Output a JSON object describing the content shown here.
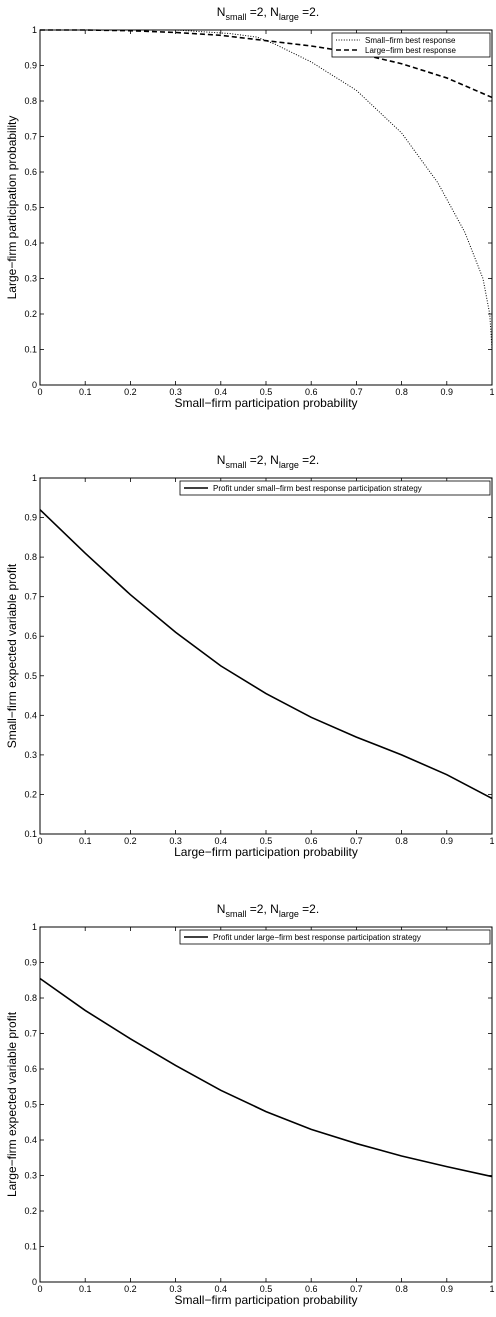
{
  "chart_data": [
    {
      "type": "line",
      "title": "N_small =2, N_large =2.",
      "title_parts": [
        "N",
        "small",
        " =2, N",
        "large",
        " =2."
      ],
      "xlabel": "Small−firm participation probability",
      "ylabel": "Large−firm participation probability",
      "xlim": [
        0,
        1
      ],
      "ylim": [
        0,
        1
      ],
      "x_ticks": [
        0,
        0.1,
        0.2,
        0.3,
        0.4,
        0.5,
        0.6,
        0.7,
        0.8,
        0.9,
        1
      ],
      "x_tick_labels": [
        "0",
        "0.1",
        "0.2",
        "0.3",
        "0.4",
        "0.5",
        "0.6",
        "0.7",
        "0.8",
        "0.9",
        "1"
      ],
      "y_ticks": [
        0,
        0.1,
        0.2,
        0.3,
        0.4,
        0.5,
        0.6,
        0.7,
        0.8,
        0.9,
        1
      ],
      "y_tick_labels": [
        "0",
        "0.1",
        "0.2",
        "0.3",
        "0.4",
        "0.5",
        "0.6",
        "0.7",
        "0.8",
        "0.9",
        "1"
      ],
      "grid": false,
      "legend": "top-right",
      "series": [
        {
          "name": "Small−firm best response",
          "style": "dotted",
          "x": [
            0.0,
            0.3,
            0.42,
            0.48,
            0.52,
            0.6,
            0.7,
            0.8,
            0.88,
            0.94,
            0.98,
            0.995,
            1.0,
            1.0
          ],
          "y": [
            1.0,
            1.0,
            0.99,
            0.98,
            0.96,
            0.91,
            0.83,
            0.71,
            0.57,
            0.43,
            0.3,
            0.2,
            0.1,
            0.0
          ]
        },
        {
          "name": "Large−firm best response",
          "style": "dashed",
          "x": [
            0.0,
            0.1,
            0.2,
            0.3,
            0.4,
            0.5,
            0.6,
            0.7,
            0.8,
            0.9,
            1.0
          ],
          "y": [
            1.0,
            1.0,
            0.998,
            0.993,
            0.985,
            0.97,
            0.955,
            0.935,
            0.905,
            0.865,
            0.81
          ]
        }
      ]
    },
    {
      "type": "line",
      "title": "N_small =2, N_large =2.",
      "title_parts": [
        "N",
        "small",
        " =2, N",
        "large",
        " =2."
      ],
      "xlabel": "Large−firm participation probability",
      "ylabel": "Small−firm expected variable profit",
      "xlim": [
        0,
        1
      ],
      "ylim": [
        0.1,
        1
      ],
      "x_ticks": [
        0,
        0.1,
        0.2,
        0.3,
        0.4,
        0.5,
        0.6,
        0.7,
        0.8,
        0.9,
        1
      ],
      "x_tick_labels": [
        "0",
        "0.1",
        "0.2",
        "0.3",
        "0.4",
        "0.5",
        "0.6",
        "0.7",
        "0.8",
        "0.9",
        "1"
      ],
      "y_ticks": [
        0.1,
        0.2,
        0.3,
        0.4,
        0.5,
        0.6,
        0.7,
        0.8,
        0.9,
        1
      ],
      "y_tick_labels": [
        "0.1",
        "0.2",
        "0.3",
        "0.4",
        "0.5",
        "0.6",
        "0.7",
        "0.8",
        "0.9",
        "1"
      ],
      "grid": false,
      "legend": "top-right",
      "series": [
        {
          "name": "Profit under small−firm best response participation strategy",
          "style": "solid",
          "x": [
            0.0,
            0.1,
            0.2,
            0.3,
            0.4,
            0.5,
            0.6,
            0.7,
            0.8,
            0.9,
            1.0
          ],
          "y": [
            0.92,
            0.81,
            0.705,
            0.61,
            0.525,
            0.455,
            0.395,
            0.345,
            0.3,
            0.25,
            0.19
          ]
        }
      ]
    },
    {
      "type": "line",
      "title": "N_small =2, N_large =2.",
      "title_parts": [
        "N",
        "small",
        " =2, N",
        "large",
        " =2."
      ],
      "xlabel": "Small−firm participation probability",
      "ylabel": "Large−firm expected variable profit",
      "xlim": [
        0,
        1
      ],
      "ylim": [
        0,
        1
      ],
      "x_ticks": [
        0,
        0.1,
        0.2,
        0.3,
        0.4,
        0.5,
        0.6,
        0.7,
        0.8,
        0.9,
        1
      ],
      "x_tick_labels": [
        "0",
        "0.1",
        "0.2",
        "0.3",
        "0.4",
        "0.5",
        "0.6",
        "0.7",
        "0.8",
        "0.9",
        "1"
      ],
      "y_ticks": [
        0,
        0.1,
        0.2,
        0.3,
        0.4,
        0.5,
        0.6,
        0.7,
        0.8,
        0.9,
        1
      ],
      "y_tick_labels": [
        "0",
        "0.1",
        "0.2",
        "0.3",
        "0.4",
        "0.5",
        "0.6",
        "0.7",
        "0.8",
        "0.9",
        "1"
      ],
      "grid": false,
      "legend": "top-right",
      "series": [
        {
          "name": "Profit under large−firm best response participation strategy",
          "style": "solid",
          "x": [
            0.0,
            0.1,
            0.2,
            0.3,
            0.4,
            0.5,
            0.6,
            0.7,
            0.8,
            0.9,
            1.0
          ],
          "y": [
            0.855,
            0.765,
            0.685,
            0.61,
            0.54,
            0.48,
            0.43,
            0.39,
            0.355,
            0.325,
            0.297
          ]
        }
      ]
    }
  ]
}
